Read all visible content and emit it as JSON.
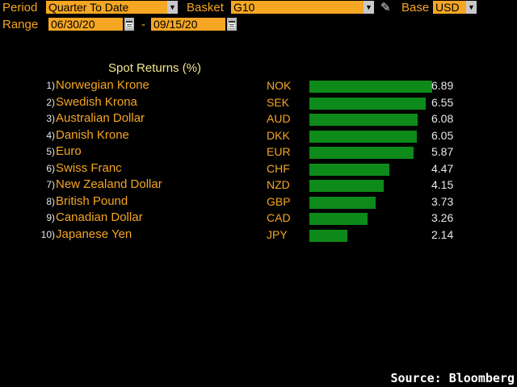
{
  "toolbar": {
    "period_label": "Period",
    "period_value": "Quarter To Date",
    "basket_label": "Basket",
    "basket_value": "G10",
    "edit_icon": "pencil-icon",
    "base_label": "Base",
    "base_value": "USD",
    "range_label": "Range",
    "range_start": "06/30/20",
    "range_separator": "-",
    "range_end": "09/15/20"
  },
  "chart_data": {
    "type": "bar",
    "title": "Spot Returns (%)",
    "orientation": "horizontal",
    "xlim": [
      0,
      6.89
    ],
    "bar_color": "#0d8a1a",
    "rows": [
      {
        "rank": "1)",
        "name": "Norwegian Krone",
        "code": "NOK",
        "value": 6.89,
        "label": "6.89"
      },
      {
        "rank": "2)",
        "name": "Swedish Krona",
        "code": "SEK",
        "value": 6.55,
        "label": "6.55"
      },
      {
        "rank": "3)",
        "name": "Australian Dollar",
        "code": "AUD",
        "value": 6.08,
        "label": "6.08"
      },
      {
        "rank": "4)",
        "name": "Danish Krone",
        "code": "DKK",
        "value": 6.05,
        "label": "6.05"
      },
      {
        "rank": "5)",
        "name": "Euro",
        "code": "EUR",
        "value": 5.87,
        "label": "5.87"
      },
      {
        "rank": "6)",
        "name": "Swiss Franc",
        "code": "CHF",
        "value": 4.47,
        "label": "4.47"
      },
      {
        "rank": "7)",
        "name": "New Zealand Dollar",
        "code": "NZD",
        "value": 4.15,
        "label": "4.15"
      },
      {
        "rank": "8)",
        "name": "British Pound",
        "code": "GBP",
        "value": 3.73,
        "label": "3.73"
      },
      {
        "rank": "9)",
        "name": "Canadian Dollar",
        "code": "CAD",
        "value": 3.26,
        "label": "3.26"
      },
      {
        "rank": "10)",
        "name": "Japanese Yen",
        "code": "JPY",
        "value": 2.14,
        "label": "2.14"
      }
    ]
  },
  "footer": {
    "source": "Source: Bloomberg"
  }
}
